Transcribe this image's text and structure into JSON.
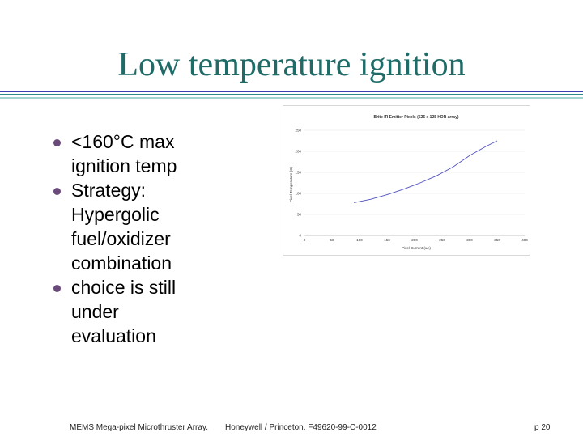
{
  "slide": {
    "title": "Low temperature ignition",
    "bullets": [
      "<160°C max ignition temp",
      "Strategy: Hypergolic fuel/oxidizer combination",
      "choice is still under evaluation"
    ],
    "footer_left": "MEMS Mega-pixel Microthruster Array.",
    "footer_center": "Honeywell / Princeton.  F49620-99-C-0012",
    "footer_right": "p 20"
  },
  "colors": {
    "title": "#1e6b68",
    "rule_blue": "#3a3fb0",
    "rule_teal": "#2a8a86",
    "rule_light": "#9fd3d0",
    "bullet": "#6a4a7a",
    "series": "#5050c0"
  },
  "chart_data": {
    "type": "line",
    "title": "Brite IR Emitter Pixels (525 x 125 HDR array)",
    "xlabel": "Pixel Current (uA)",
    "ylabel": "Pixel Temperature (C)",
    "xlim": [
      0,
      400
    ],
    "ylim": [
      0,
      250
    ],
    "xticks": [
      0,
      50,
      100,
      150,
      200,
      250,
      300,
      350,
      400
    ],
    "yticks": [
      0,
      50,
      100,
      150,
      200,
      250
    ],
    "grid": "horizontal",
    "series": [
      {
        "name": "",
        "x": [
          90,
          120,
          150,
          180,
          210,
          240,
          270,
          300,
          330,
          350
        ],
        "y": [
          78,
          86,
          97,
          110,
          125,
          142,
          163,
          190,
          212,
          225
        ]
      }
    ]
  }
}
